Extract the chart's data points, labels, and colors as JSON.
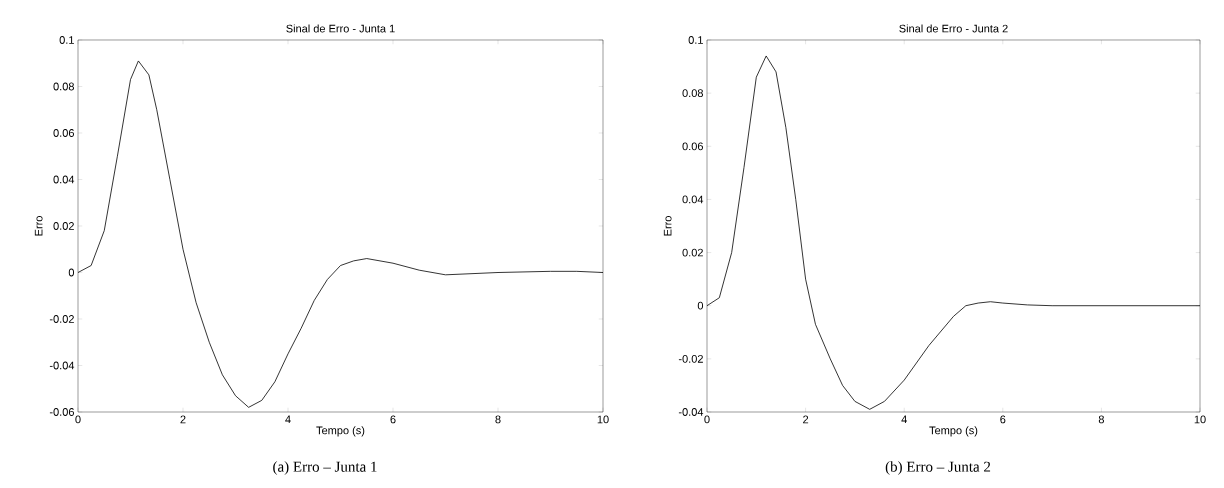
{
  "chart_data": [
    {
      "type": "line",
      "title": "Sinal de Erro - Junta 1",
      "xlabel": "Tempo (s)",
      "ylabel": "Erro",
      "annotations": [
        "(a)   Erro – Junta 1"
      ],
      "xlim": [
        0,
        10
      ],
      "ylim": [
        -0.06,
        0.1
      ],
      "xticks": [
        0,
        2,
        4,
        6,
        8,
        10
      ],
      "yticks": [
        -0.06,
        -0.04,
        -0.02,
        0,
        0.02,
        0.04,
        0.06,
        0.08,
        0.1
      ],
      "series": [
        {
          "color": "#000000",
          "x": [
            0,
            0.25,
            0.5,
            0.75,
            1.0,
            1.15,
            1.35,
            1.5,
            1.75,
            2.0,
            2.25,
            2.5,
            2.75,
            3.0,
            3.25,
            3.5,
            3.75,
            4.0,
            4.25,
            4.5,
            4.75,
            5.0,
            5.25,
            5.5,
            6.0,
            6.5,
            7.0,
            8.0,
            9.0,
            9.5,
            10
          ],
          "values": [
            0,
            0.003,
            0.018,
            0.05,
            0.083,
            0.091,
            0.085,
            0.07,
            0.04,
            0.01,
            -0.013,
            -0.03,
            -0.044,
            -0.053,
            -0.058,
            -0.055,
            -0.047,
            -0.035,
            -0.024,
            -0.012,
            -0.003,
            0.003,
            0.005,
            0.006,
            0.004,
            0.001,
            -0.001,
            0,
            0.0005,
            0.0005,
            0
          ]
        }
      ]
    },
    {
      "type": "line",
      "title": "Sinal de Erro - Junta 2",
      "xlabel": "Tempo (s)",
      "ylabel": "Erro",
      "annotations": [
        "(b)   Erro – Junta 2"
      ],
      "xlim": [
        0,
        10
      ],
      "ylim": [
        -0.04,
        0.1
      ],
      "xticks": [
        0,
        2,
        4,
        6,
        8,
        10
      ],
      "yticks": [
        -0.04,
        -0.02,
        0,
        0.02,
        0.04,
        0.06,
        0.08,
        0.1
      ],
      "series": [
        {
          "color": "#000000",
          "x": [
            0,
            0.25,
            0.5,
            0.75,
            1.0,
            1.2,
            1.4,
            1.6,
            1.8,
            2.0,
            2.2,
            2.5,
            2.75,
            3.0,
            3.3,
            3.6,
            4.0,
            4.5,
            5.0,
            5.25,
            5.5,
            5.75,
            6.0,
            6.5,
            7.0,
            8.0,
            10
          ],
          "values": [
            0,
            0.003,
            0.02,
            0.052,
            0.086,
            0.094,
            0.088,
            0.067,
            0.04,
            0.01,
            -0.007,
            -0.02,
            -0.03,
            -0.036,
            -0.039,
            -0.036,
            -0.028,
            -0.015,
            -0.004,
            0,
            0.001,
            0.0015,
            0.001,
            0.0003,
            0,
            0,
            0
          ]
        }
      ]
    }
  ]
}
